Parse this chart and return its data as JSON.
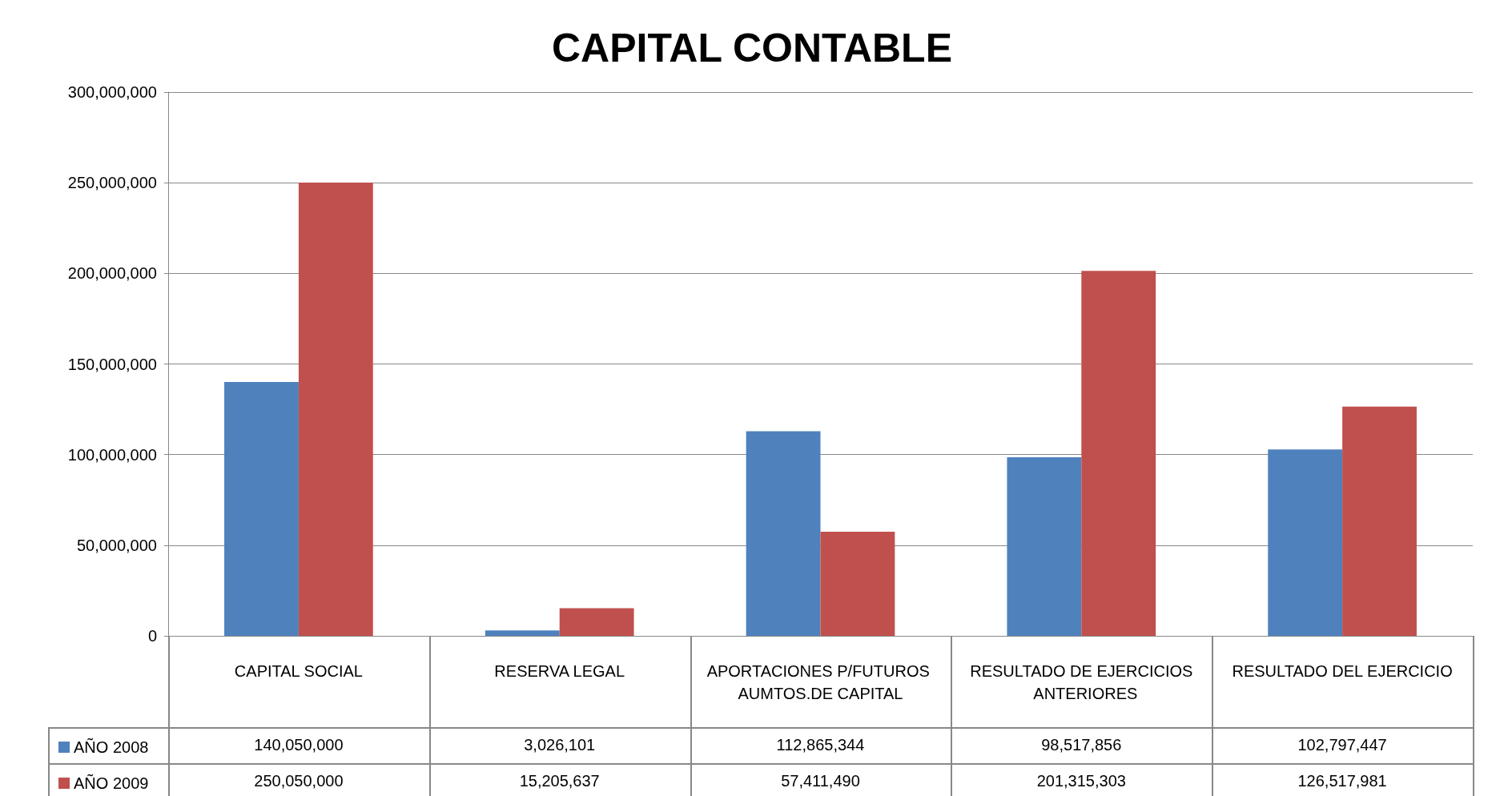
{
  "chart_data": {
    "type": "bar",
    "title": "CAPITAL CONTABLE",
    "categories": [
      "CAPITAL SOCIAL",
      "RESERVA LEGAL",
      "APORTACIONES P/FUTUROS AUMTOS.DE CAPITAL",
      "RESULTADO DE EJERCICIOS  ANTERIORES",
      "RESULTADO DEL EJERCICIO"
    ],
    "series": [
      {
        "name": "AÑO 2008",
        "color": "#4f81bd",
        "values": [
          140050000,
          3026101,
          112865344,
          98517856,
          102797447
        ],
        "value_labels": [
          "140,050,000",
          "3,026,101",
          "112,865,344",
          "98,517,856",
          "102,797,447"
        ]
      },
      {
        "name": "AÑO 2009",
        "color": "#c0504d",
        "values": [
          250050000,
          15205637,
          57411490,
          201315303,
          126517981
        ],
        "value_labels": [
          "250,050,000",
          "15,205,637",
          "57,411,490",
          "201,315,303",
          "126,517,981"
        ]
      }
    ],
    "ylim": [
      0,
      300000000
    ],
    "yticks": [
      {
        "value": 0,
        "label": "0"
      },
      {
        "value": 50000000,
        "label": "50,000,000"
      },
      {
        "value": 100000000,
        "label": "100,000,000"
      },
      {
        "value": 150000000,
        "label": "150,000,000"
      },
      {
        "value": 200000000,
        "label": "200,000,000"
      },
      {
        "value": 250000000,
        "label": "250,000,000"
      },
      {
        "value": 300000000,
        "label": "300,000,000"
      }
    ],
    "grid": "y",
    "legend": "bottom left"
  }
}
